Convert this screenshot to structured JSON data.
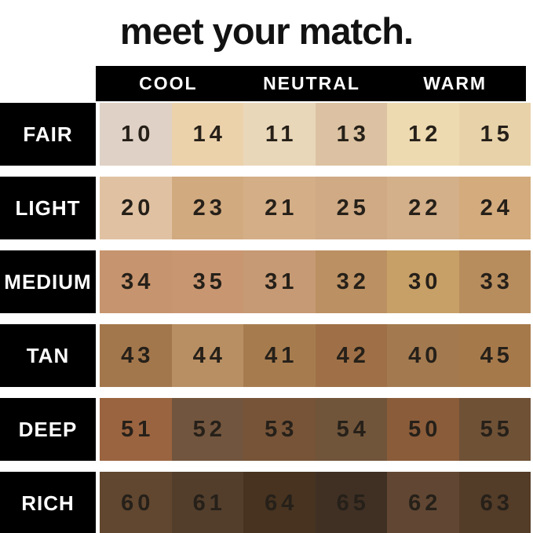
{
  "title": "meet your match.",
  "header": {
    "columns": [
      "COOL",
      "NEUTRAL",
      "WARM"
    ]
  },
  "rows": [
    {
      "label": "FAIR",
      "cells": [
        {
          "shade": "10",
          "hex": "#dfd1c5"
        },
        {
          "shade": "14",
          "hex": "#ecd2ab"
        },
        {
          "shade": "11",
          "hex": "#e9d7ba"
        },
        {
          "shade": "13",
          "hex": "#dcc2a2"
        },
        {
          "shade": "12",
          "hex": "#eddab1"
        },
        {
          "shade": "15",
          "hex": "#e8d2a9"
        }
      ]
    },
    {
      "label": "LIGHT",
      "cells": [
        {
          "shade": "20",
          "hex": "#e0c2a3"
        },
        {
          "shade": "23",
          "hex": "#d2aa7f"
        },
        {
          "shade": "21",
          "hex": "#d4ae87"
        },
        {
          "shade": "25",
          "hex": "#cfaa85"
        },
        {
          "shade": "22",
          "hex": "#d3af8a"
        },
        {
          "shade": "24",
          "hex": "#d3ab7d"
        }
      ]
    },
    {
      "label": "MEDIUM",
      "cells": [
        {
          "shade": "34",
          "hex": "#c6946e"
        },
        {
          "shade": "35",
          "hex": "#c99672"
        },
        {
          "shade": "31",
          "hex": "#c69a74"
        },
        {
          "shade": "32",
          "hex": "#bb9062"
        },
        {
          "shade": "30",
          "hex": "#c7a067"
        },
        {
          "shade": "33",
          "hex": "#b88d5e"
        }
      ]
    },
    {
      "label": "TAN",
      "cells": [
        {
          "shade": "43",
          "hex": "#a3774c"
        },
        {
          "shade": "44",
          "hex": "#b88f63"
        },
        {
          "shade": "41",
          "hex": "#a67c4f"
        },
        {
          "shade": "42",
          "hex": "#9f7047"
        },
        {
          "shade": "40",
          "hex": "#a37a50"
        },
        {
          "shade": "45",
          "hex": "#a6794b"
        }
      ]
    },
    {
      "label": "DEEP",
      "cells": [
        {
          "shade": "51",
          "hex": "#9a6440"
        },
        {
          "shade": "52",
          "hex": "#72553e"
        },
        {
          "shade": "53",
          "hex": "#775438"
        },
        {
          "shade": "54",
          "hex": "#70553b"
        },
        {
          "shade": "50",
          "hex": "#8a5c3a"
        },
        {
          "shade": "55",
          "hex": "#6f5136"
        }
      ]
    },
    {
      "label": "RICH",
      "cells": [
        {
          "shade": "60",
          "hex": "#614730"
        },
        {
          "shade": "61",
          "hex": "#533e2c"
        },
        {
          "shade": "64",
          "hex": "#473320"
        },
        {
          "shade": "65",
          "hex": "#403024"
        },
        {
          "shade": "62",
          "hex": "#614733"
        },
        {
          "shade": "63",
          "hex": "#533c28"
        }
      ]
    }
  ],
  "colors": {
    "background": "#ffffff",
    "bar": "#000000",
    "header_text": "#ffffff",
    "row_label_text": "#ffffff",
    "number_text": "#262019",
    "title_text": "#121212"
  },
  "chart_data": {
    "type": "table",
    "title": "meet your match.",
    "column_groups": [
      "COOL",
      "NEUTRAL",
      "WARM"
    ],
    "columns_per_group": 2,
    "row_labels": [
      "FAIR",
      "LIGHT",
      "MEDIUM",
      "TAN",
      "DEEP",
      "RICH"
    ],
    "values": [
      [
        10,
        14,
        11,
        13,
        12,
        15
      ],
      [
        20,
        23,
        21,
        25,
        22,
        24
      ],
      [
        34,
        35,
        31,
        32,
        30,
        33
      ],
      [
        43,
        44,
        41,
        42,
        40,
        45
      ],
      [
        51,
        52,
        53,
        54,
        50,
        55
      ],
      [
        60,
        61,
        64,
        65,
        62,
        63
      ]
    ],
    "cell_colors": [
      [
        "#dfd1c5",
        "#ecd2ab",
        "#e9d7ba",
        "#dcc2a2",
        "#eddab1",
        "#e8d2a9"
      ],
      [
        "#e0c2a3",
        "#d2aa7f",
        "#d4ae87",
        "#cfaa85",
        "#d3af8a",
        "#d3ab7d"
      ],
      [
        "#c6946e",
        "#c99672",
        "#c69a74",
        "#bb9062",
        "#c7a067",
        "#b88d5e"
      ],
      [
        "#a3774c",
        "#b88f63",
        "#a67c4f",
        "#9f7047",
        "#a37a50",
        "#a6794b"
      ],
      [
        "#9a6440",
        "#72553e",
        "#775438",
        "#70553b",
        "#8a5c3a",
        "#6f5136"
      ],
      [
        "#614730",
        "#533e2c",
        "#473320",
        "#403024",
        "#614733",
        "#533c28"
      ]
    ],
    "legend_position": "none",
    "grid": false
  }
}
